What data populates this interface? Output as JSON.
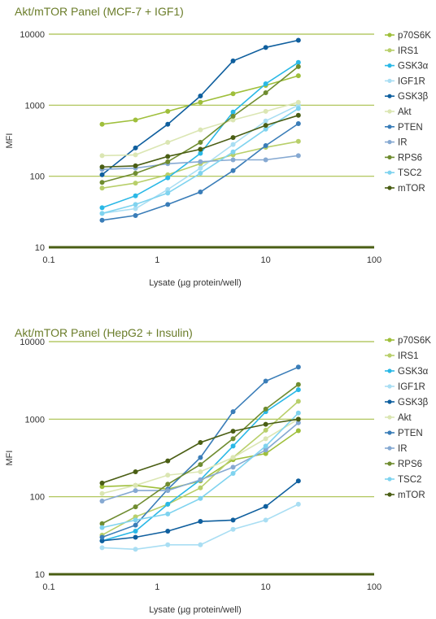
{
  "chart_data": [
    {
      "type": "line",
      "title": "Akt/mTOR Panel (MCF-7 + IGF1)",
      "xlabel": "Lysate (µg protein/well)",
      "ylabel": "MFI",
      "xscale": "log",
      "yscale": "log",
      "xlim": [
        0.1,
        100
      ],
      "ylim": [
        10,
        10000
      ],
      "xticks": [
        "0.1",
        "1",
        "10",
        "100"
      ],
      "yticks": [
        "10",
        "100",
        "1000",
        "10000"
      ],
      "grid": "horizontal",
      "legend": "right",
      "x": [
        0.31,
        0.63,
        1.25,
        2.5,
        5,
        10,
        20
      ],
      "series": [
        {
          "name": "p70S6K",
          "color": "#9fbf3b",
          "values": [
            540,
            620,
            820,
            1100,
            1450,
            1900,
            2600
          ]
        },
        {
          "name": "IRS1",
          "color": "#b8cf6a",
          "values": [
            68,
            80,
            105,
            150,
            200,
            255,
            310
          ]
        },
        {
          "name": "GSK3α",
          "color": "#2ab8e6",
          "values": [
            36,
            53,
            95,
            210,
            800,
            2000,
            4000
          ]
        },
        {
          "name": "IGF1R",
          "color": "#a9def3",
          "values": [
            30,
            35,
            65,
            130,
            280,
            600,
            1000
          ]
        },
        {
          "name": "GSK3β",
          "color": "#0f5f9e",
          "values": [
            105,
            250,
            540,
            1350,
            4200,
            6500,
            8200
          ]
        },
        {
          "name": "Akt",
          "color": "#dbe6b3",
          "values": [
            195,
            200,
            300,
            450,
            620,
            820,
            1100
          ]
        },
        {
          "name": "PTEN",
          "color": "#3a7db8",
          "values": [
            24,
            28,
            40,
            60,
            120,
            270,
            550
          ]
        },
        {
          "name": "IR",
          "color": "#86a9d2",
          "values": [
            125,
            130,
            150,
            160,
            170,
            170,
            195
          ]
        },
        {
          "name": "RPS6",
          "color": "#6f8c30",
          "values": [
            82,
            110,
            160,
            300,
            700,
            1500,
            3500
          ]
        },
        {
          "name": "TSC2",
          "color": "#7fd3ef",
          "values": [
            30,
            40,
            58,
            110,
            220,
            460,
            900
          ]
        },
        {
          "name": "mTOR",
          "color": "#4a5e14",
          "values": [
            135,
            140,
            190,
            240,
            350,
            520,
            720
          ]
        }
      ]
    },
    {
      "type": "line",
      "title": "Akt/mTOR Panel (HepG2 + Insulin)",
      "xlabel": "Lysate (µg protein/well)",
      "ylabel": "MFI",
      "xscale": "log",
      "yscale": "log",
      "xlim": [
        0.1,
        100
      ],
      "ylim": [
        10,
        10000
      ],
      "xticks": [
        "0.1",
        "1",
        "10",
        "100"
      ],
      "yticks": [
        "10",
        "100",
        "1000",
        "10000"
      ],
      "grid": "horizontal",
      "legend": "right",
      "x": [
        0.31,
        0.63,
        1.25,
        2.5,
        5,
        10,
        20
      ],
      "series": [
        {
          "name": "p70S6K",
          "color": "#9fbf3b",
          "values": [
            135,
            140,
            125,
            160,
            300,
            360,
            710
          ]
        },
        {
          "name": "IRS1",
          "color": "#b8cf6a",
          "values": [
            32,
            55,
            80,
            130,
            320,
            720,
            1700
          ]
        },
        {
          "name": "GSK3α",
          "color": "#2ab8e6",
          "values": [
            27,
            36,
            80,
            165,
            450,
            1250,
            2400
          ]
        },
        {
          "name": "IGF1R",
          "color": "#a9def3",
          "values": [
            22,
            21,
            24,
            24,
            38,
            50,
            80
          ]
        },
        {
          "name": "GSK3β",
          "color": "#0f5f9e",
          "values": [
            27,
            30,
            36,
            48,
            50,
            75,
            160
          ]
        },
        {
          "name": "Akt",
          "color": "#dbe6b3",
          "values": [
            110,
            140,
            190,
            210,
            320,
            560,
            1000
          ]
        },
        {
          "name": "PTEN",
          "color": "#3a7db8",
          "values": [
            30,
            43,
            125,
            320,
            1250,
            3100,
            4700
          ]
        },
        {
          "name": "IR",
          "color": "#86a9d2",
          "values": [
            88,
            120,
            120,
            165,
            240,
            400,
            900
          ]
        },
        {
          "name": "RPS6",
          "color": "#6f8c30",
          "values": [
            45,
            74,
            145,
            260,
            560,
            1350,
            2800
          ]
        },
        {
          "name": "TSC2",
          "color": "#7fd3ef",
          "values": [
            40,
            50,
            60,
            95,
            200,
            450,
            1200
          ]
        },
        {
          "name": "mTOR",
          "color": "#4a5e14",
          "values": [
            150,
            210,
            290,
            500,
            700,
            860,
            1000
          ]
        }
      ]
    }
  ]
}
